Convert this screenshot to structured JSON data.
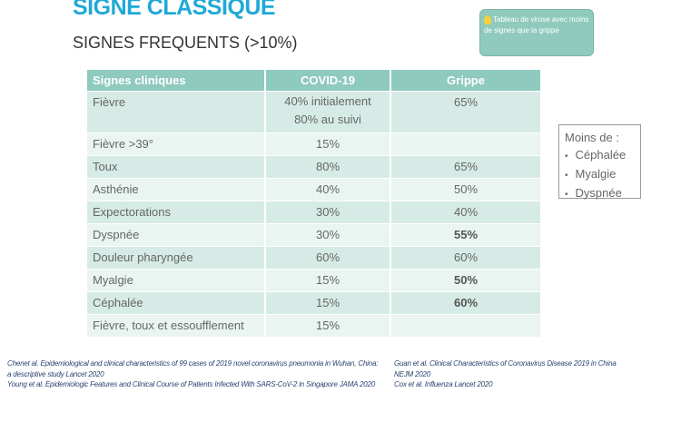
{
  "title": "SIGNE CLASSIQUE",
  "subtitle": "SIGNES FREQUENTS (>10%)",
  "note": {
    "icon": "lightbulb-icon",
    "text": "Tableau de virose avec moins de signes que la grippe"
  },
  "table": {
    "headers": [
      "Signes cliniques",
      "COVID-19",
      "Grippe"
    ],
    "rows": [
      {
        "sign": "Fièvre",
        "covid": "40% initialement",
        "covid2": "80% au suivi",
        "grippe": "65%",
        "bold": false
      },
      {
        "sign": "Fièvre >39°",
        "covid": "15%",
        "grippe": "",
        "bold": false
      },
      {
        "sign": "Toux",
        "covid": "80%",
        "grippe": "65%",
        "bold": false
      },
      {
        "sign": "Asthénie",
        "covid": "40%",
        "grippe": "50%",
        "bold": false
      },
      {
        "sign": "Expectorations",
        "covid": "30%",
        "grippe": "40%",
        "bold": false
      },
      {
        "sign": "Dyspnée",
        "covid": "30%",
        "grippe": "55%",
        "bold": true
      },
      {
        "sign": "Douleur pharyngée",
        "covid": "60%",
        "grippe": "60%",
        "bold": false
      },
      {
        "sign": "Myalgie",
        "covid": "15%",
        "grippe": "50%",
        "bold": true
      },
      {
        "sign": "Céphalée",
        "covid": "15%",
        "grippe": "60%",
        "bold": true
      },
      {
        "sign": "Fièvre, toux et essoufflement",
        "covid": "15%",
        "grippe": "",
        "bold": false
      }
    ]
  },
  "moins": {
    "title": "Moins de :",
    "items": [
      "Céphalée",
      "Myalgie",
      "Dyspnée"
    ]
  },
  "refs_left": [
    "Chenet al. Epidemiological and clinical characteristics of 99 cases of 2019 novel coronavirus pneumonia in Wuhan, China:",
    "a descriptive study Lancet 2020",
    "Young et al. Epidemiologic Features and Clinical Course of Patients Infected With SARS-CoV-2 in Singapore JAMA 2020"
  ],
  "refs_right": [
    "Guan et al. Clinical Characteristics of Coronavirus Disease 2019 in China",
    "NEJM 2020",
    "Cox et al. Influenza Lancet 2020"
  ]
}
